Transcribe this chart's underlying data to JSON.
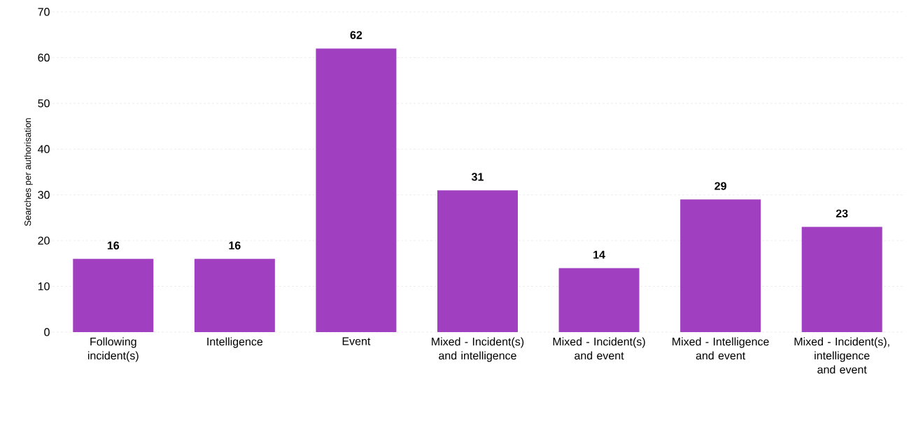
{
  "chart_data": {
    "type": "bar",
    "ylabel": "Searches per authorisation",
    "categories": [
      "Following incident(s)",
      "Intelligence",
      "Event",
      "Mixed - Incident(s) and intelligence",
      "Mixed - Incident(s) and event",
      "Mixed - Intelligence and event",
      "Mixed - Incident(s), intelligence and event"
    ],
    "values": [
      16,
      16,
      62,
      31,
      14,
      29,
      23
    ],
    "color": "#a040c0",
    "ylim": [
      0,
      70
    ],
    "yticks": [
      0,
      10,
      20,
      30,
      40,
      50,
      60,
      70
    ],
    "grid": "y",
    "data_labels": true
  }
}
